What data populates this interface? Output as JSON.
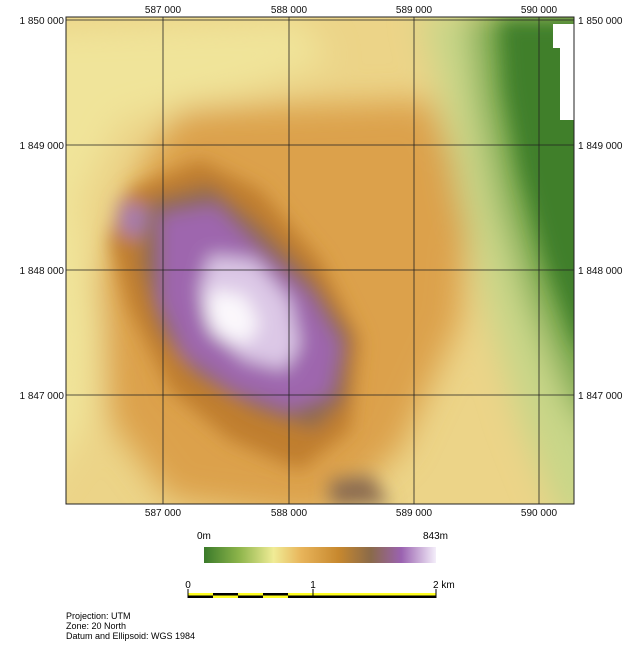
{
  "map": {
    "easting_ticks": [
      "587 000",
      "588 000",
      "589 000",
      "590 000"
    ],
    "northing_ticks": [
      "1 850 000",
      "1 849 000",
      "1 848 000",
      "1 847 000"
    ]
  },
  "legend": {
    "min_label": "0m",
    "max_label": "843m",
    "colors": [
      "#3a7a2a",
      "#8cb44a",
      "#f0ec96",
      "#e8b45a",
      "#c7882e",
      "#8a6a4a",
      "#9a62b0",
      "#f4eefa"
    ]
  },
  "scale_bar": {
    "labels": [
      "0",
      "1",
      "2 km"
    ],
    "colors": [
      "#ffff22",
      "#000000"
    ]
  },
  "info": {
    "projection": "Projection: UTM",
    "zone": "Zone: 20 North",
    "datum": "Datum and Ellipsoid: WGS 1984"
  }
}
